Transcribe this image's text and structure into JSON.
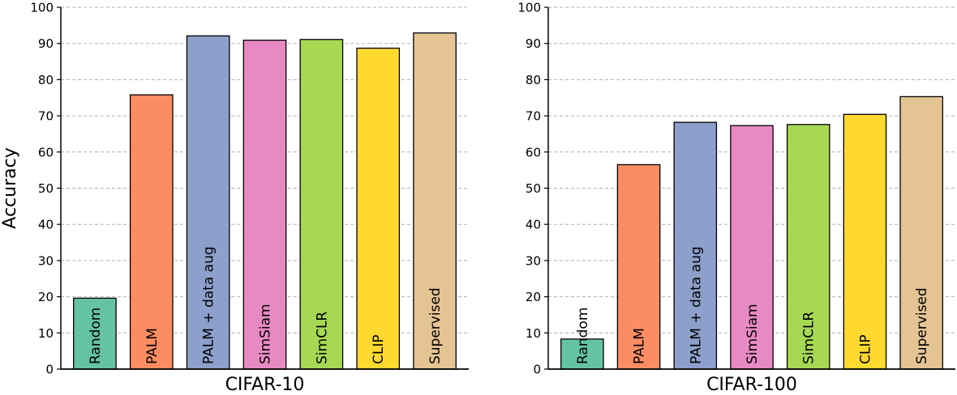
{
  "chart_data": [
    {
      "type": "bar",
      "title": "",
      "xlabel": "CIFAR-10",
      "ylabel": "Accuracy",
      "ylim": [
        0,
        100
      ],
      "yticks": [
        "0",
        "10",
        "20",
        "30",
        "40",
        "50",
        "60",
        "70",
        "80",
        "90",
        "100"
      ],
      "grid": true,
      "categories": [
        "Random",
        "PALM",
        "PALM + data aug",
        "SimSiam",
        "SimCLR",
        "CLIP",
        "Supervised"
      ],
      "values": [
        19.6,
        75.8,
        92.1,
        90.9,
        91.1,
        88.7,
        92.9
      ],
      "colors": [
        "#66c2a5",
        "#fc8d62",
        "#8da0cb",
        "#e78ac3",
        "#a6d854",
        "#ffd92f",
        "#e5c494"
      ]
    },
    {
      "type": "bar",
      "title": "",
      "xlabel": "CIFAR-100",
      "ylabel": "",
      "ylim": [
        0,
        100
      ],
      "yticks": [
        "0",
        "10",
        "20",
        "30",
        "40",
        "50",
        "60",
        "70",
        "80",
        "90",
        "100"
      ],
      "grid": true,
      "categories": [
        "Random",
        "PALM",
        "PALM + data aug",
        "SimSiam",
        "SimCLR",
        "CLIP",
        "Supervised"
      ],
      "values": [
        8.3,
        56.5,
        68.2,
        67.3,
        67.6,
        70.4,
        75.3
      ],
      "colors": [
        "#66c2a5",
        "#fc8d62",
        "#8da0cb",
        "#e78ac3",
        "#a6d854",
        "#ffd92f",
        "#e5c494"
      ]
    }
  ]
}
